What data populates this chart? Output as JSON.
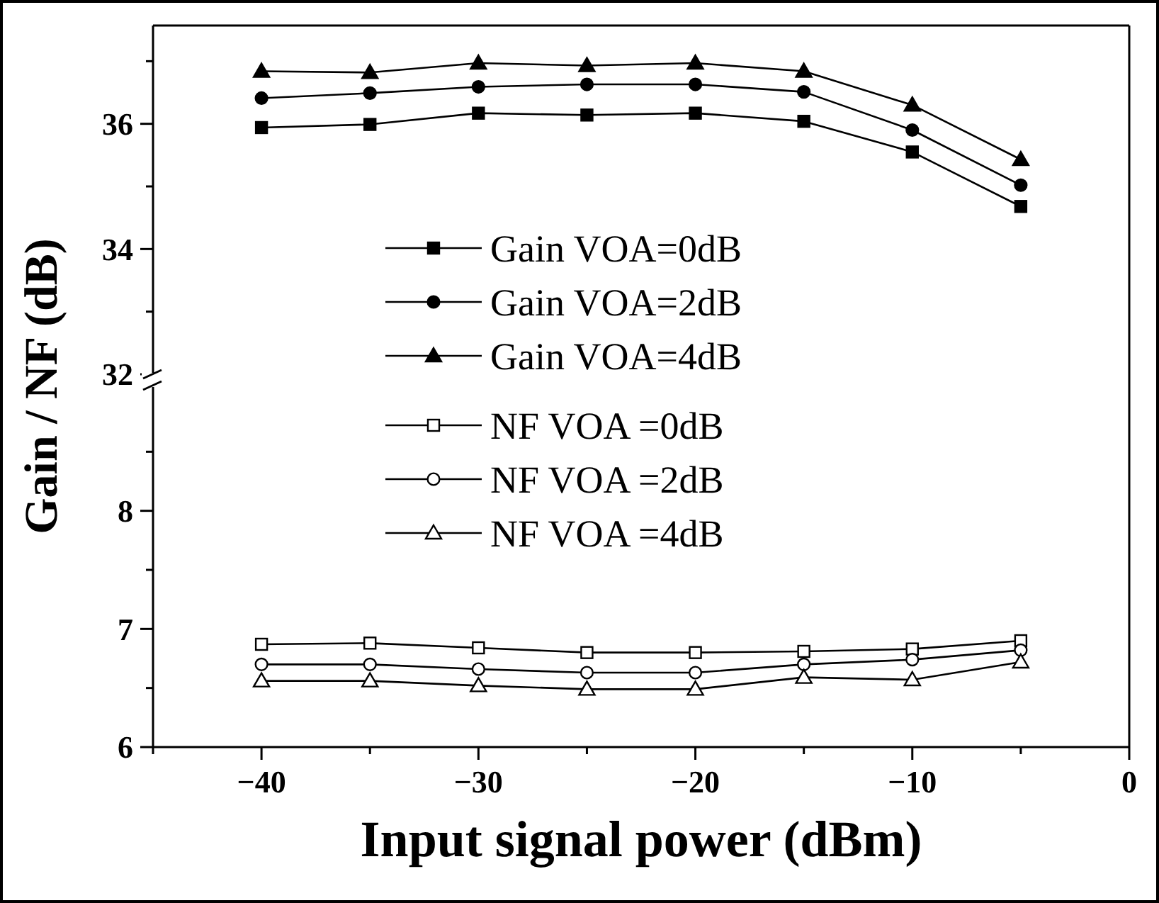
{
  "chart_data": [
    {
      "type": "line",
      "xlim": [
        -45,
        0
      ],
      "ylim": [
        32,
        37.57
      ],
      "yticks": [
        32,
        {
          "value": 33,
          "label": null
        },
        34,
        {
          "value": 35,
          "label": null
        },
        36,
        {
          "value": 37,
          "label": null
        }
      ],
      "tick_labels": "y",
      "grid": false,
      "legend": "bottom",
      "x": [
        -40,
        -35,
        -30,
        -25,
        -20,
        -15,
        -10,
        -5
      ],
      "series": [
        {
          "name": "Gain VOA=0dB",
          "color": "#000000",
          "marker": "square",
          "values": [
            35.94,
            35.99,
            36.17,
            36.14,
            36.17,
            36.04,
            35.55,
            34.68
          ]
        },
        {
          "name": "Gain VOA=2dB",
          "color": "#000000",
          "marker": "circle",
          "values": [
            36.41,
            36.49,
            36.59,
            36.63,
            36.63,
            36.51,
            35.9,
            35.02
          ]
        },
        {
          "name": "Gain VOA=4dB",
          "color": "#000000",
          "marker": "triangle",
          "values": [
            36.84,
            36.82,
            36.97,
            36.93,
            36.97,
            36.84,
            36.3,
            35.43
          ]
        }
      ]
    },
    {
      "type": "line",
      "xlabel": "Input signal power (dBm)",
      "ylabel": "Gain / NF (dB)",
      "xlim": [
        -45,
        0
      ],
      "ylim": [
        6,
        9.06
      ],
      "xticks": [
        {
          "value": -45,
          "label": null
        },
        -40,
        {
          "value": -35,
          "label": null
        },
        -30,
        {
          "value": -25,
          "label": null
        },
        -20,
        {
          "value": -15,
          "label": null
        },
        -10,
        {
          "value": -5,
          "label": null
        },
        0
      ],
      "yticks": [
        6,
        {
          "value": 6.5,
          "label": null
        },
        7,
        {
          "value": 7.5,
          "label": null
        },
        8,
        {
          "value": 8.5,
          "label": null
        }
      ],
      "grid": false,
      "legend": "top",
      "x": [
        -40,
        -35,
        -30,
        -25,
        -20,
        -15,
        -10,
        -5
      ],
      "series": [
        {
          "name": "NF VOA =0dB",
          "color": "#000000",
          "marker": "square",
          "values": [
            6.87,
            6.88,
            6.84,
            6.8,
            6.8,
            6.81,
            6.83,
            6.9
          ]
        },
        {
          "name": "NF VOA =2dB",
          "color": "#000000",
          "marker": "circle",
          "values": [
            6.7,
            6.7,
            6.66,
            6.63,
            6.63,
            6.7,
            6.74,
            6.82
          ]
        },
        {
          "name": "NF VOA =4dB",
          "color": "#000000",
          "marker": "triangle",
          "values": [
            6.56,
            6.56,
            6.52,
            6.49,
            6.49,
            6.59,
            6.57,
            6.72
          ]
        }
      ]
    }
  ]
}
